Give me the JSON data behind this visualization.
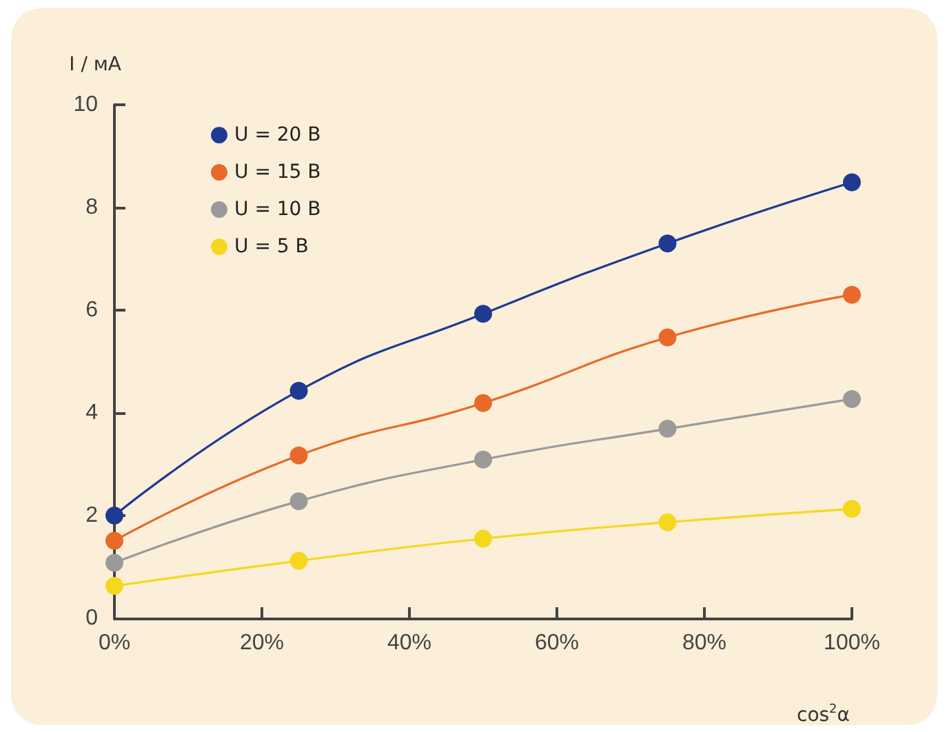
{
  "chart_data": {
    "type": "line",
    "xlabel": "cos$^{2}$α",
    "ylabel": "I / мА",
    "x": [
      0,
      25,
      50,
      75,
      100
    ],
    "series": [
      {
        "name": "U = 20 В",
        "color": "#1f3a93",
        "values": [
          2.0,
          4.43,
          5.93,
          7.3,
          8.49
        ]
      },
      {
        "name": "U = 15 В",
        "color": "#e8692a",
        "values": [
          1.51,
          3.17,
          4.19,
          5.47,
          6.3
        ]
      },
      {
        "name": "U = 10 В",
        "color": "#9a9a9a",
        "values": [
          1.08,
          2.28,
          3.09,
          3.69,
          4.27
        ]
      },
      {
        "name": "U = 5 В",
        "color": "#f5d81e",
        "values": [
          0.63,
          1.12,
          1.55,
          1.87,
          2.13
        ]
      }
    ],
    "xlim": [
      0,
      100
    ],
    "xticks": [
      {
        "value": 0,
        "label": "0%"
      },
      {
        "value": 20,
        "label": "20%"
      },
      {
        "value": 40,
        "label": "40%"
      },
      {
        "value": 60,
        "label": "60%"
      },
      {
        "value": 80,
        "label": "80%"
      },
      {
        "value": 100,
        "label": "100%"
      }
    ],
    "ylim": [
      0,
      10
    ],
    "yticks": [
      0,
      2,
      4,
      6,
      8,
      10
    ],
    "grid": false,
    "legend": "top left",
    "marker": "circle",
    "line_style": "solid"
  }
}
